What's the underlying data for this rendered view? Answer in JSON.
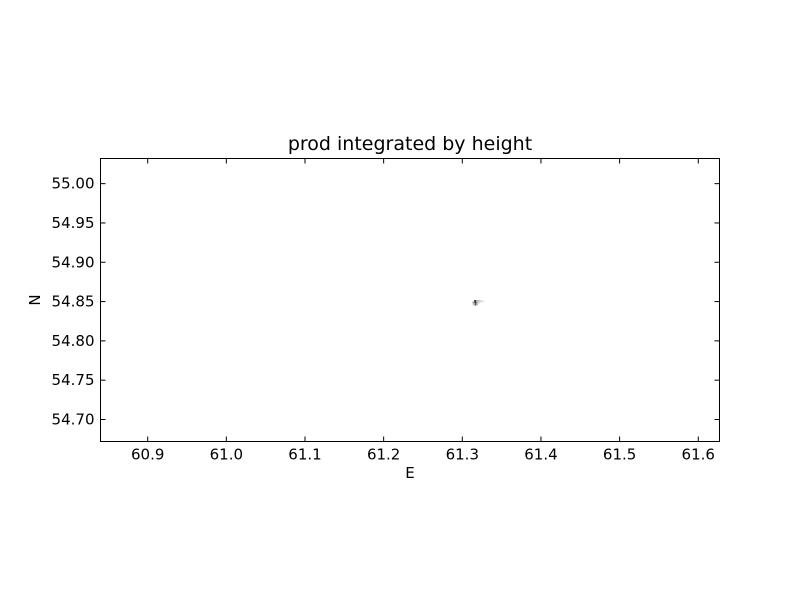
{
  "chart_data": {
    "type": "heatmap",
    "title": "prod integrated by height",
    "xlabel": "E",
    "ylabel": "N",
    "xlim": [
      60.84,
      61.627
    ],
    "ylim": [
      54.672,
      55.032
    ],
    "xticks": [
      60.9,
      61.0,
      61.1,
      61.2,
      61.3,
      61.4,
      61.5,
      61.6
    ],
    "xtick_labels": [
      "60.9",
      "61.0",
      "61.1",
      "61.2",
      "61.3",
      "61.4",
      "61.5",
      "61.6"
    ],
    "yticks": [
      54.7,
      54.75,
      54.8,
      54.85,
      54.9,
      54.95,
      55.0
    ],
    "ytick_labels": [
      "54.70",
      "54.75",
      "54.80",
      "54.85",
      "54.90",
      "54.95",
      "55.00"
    ],
    "grid": false,
    "colormap": "gray_r",
    "cells": [
      {
        "x": 61.3165,
        "y": 54.8485,
        "v": 1.0
      },
      {
        "x": 61.3165,
        "y": 54.8505,
        "v": 0.85
      },
      {
        "x": 61.3165,
        "y": 54.8465,
        "v": 0.8
      },
      {
        "x": 61.3185,
        "y": 54.8485,
        "v": 0.6
      },
      {
        "x": 61.3145,
        "y": 54.8485,
        "v": 0.45
      },
      {
        "x": 61.3185,
        "y": 54.8505,
        "v": 0.35
      },
      {
        "x": 61.3185,
        "y": 54.8465,
        "v": 0.3
      },
      {
        "x": 61.3205,
        "y": 54.8505,
        "v": 0.25
      },
      {
        "x": 61.3225,
        "y": 54.8505,
        "v": 0.18
      },
      {
        "x": 61.3245,
        "y": 54.8505,
        "v": 0.12
      },
      {
        "x": 61.3265,
        "y": 54.8505,
        "v": 0.08
      },
      {
        "x": 61.3205,
        "y": 54.8485,
        "v": 0.15
      },
      {
        "x": 61.3145,
        "y": 54.8465,
        "v": 0.2
      }
    ]
  }
}
